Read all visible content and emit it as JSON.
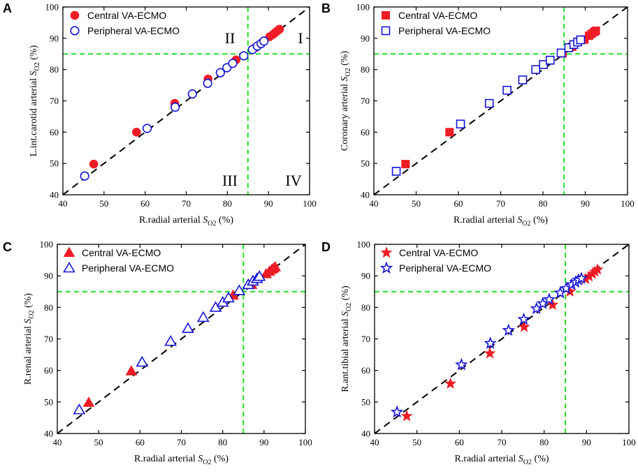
{
  "figure": {
    "xlabel_prefix": "R.radial arterial ",
    "ylabel_unit_suffix": " (%)",
    "series_names": [
      "Central VA-ECMO",
      "Peripheral VA-ECMO"
    ],
    "colors": {
      "central": "#ee1c25",
      "peripheral": "#1414d6",
      "threshold": "#22dd22",
      "identity": "#000000"
    }
  },
  "chart_data": [
    {
      "panel": "A",
      "type": "scatter",
      "marker": "circle",
      "title": "",
      "ylabel_prefix": "L.int.carotid arterial ",
      "xlabel": "R.radial arterial SO2 (%)",
      "ylabel": "L.int.carotid arterial SO2 (%)",
      "xlim": [
        40,
        100
      ],
      "ylim": [
        40,
        100
      ],
      "xticks": [
        40,
        50,
        60,
        70,
        80,
        90,
        100
      ],
      "yticks": [
        40,
        50,
        60,
        70,
        80,
        90,
        100
      ],
      "threshold": 85,
      "quadrant_labels": [
        "I",
        "II",
        "III",
        "IV"
      ],
      "legend": "top-left",
      "series": [
        {
          "name": "Central VA-ECMO",
          "x": [
            47.5,
            57.9,
            67.2,
            75.3,
            82.1,
            86.8,
            90.3,
            91.2,
            91.8,
            92.3,
            92.7
          ],
          "y": [
            49.8,
            60.0,
            69.2,
            77.0,
            83.1,
            87.0,
            90.5,
            91.3,
            92.0,
            92.5,
            92.9
          ]
        },
        {
          "name": "Peripheral VA-ECMO",
          "x": [
            45.3,
            60.5,
            67.3,
            71.5,
            75.2,
            78.3,
            79.9,
            81.3,
            84.0,
            86.1,
            87.3,
            88.2,
            88.9
          ],
          "y": [
            46.0,
            61.2,
            68.0,
            72.2,
            75.6,
            79.0,
            80.6,
            82.0,
            84.4,
            86.4,
            87.5,
            88.3,
            89.1
          ]
        }
      ]
    },
    {
      "panel": "B",
      "type": "scatter",
      "marker": "square",
      "title": "",
      "ylabel_prefix": "Coronary arterial ",
      "xlabel": "R.radial arterial SO2 (%)",
      "ylabel": "Coronary arterial SO2 (%)",
      "xlim": [
        40,
        100
      ],
      "ylim": [
        40,
        100
      ],
      "xticks": [
        40,
        50,
        60,
        70,
        80,
        90,
        100
      ],
      "yticks": [
        40,
        50,
        60,
        70,
        80,
        90,
        100
      ],
      "threshold": 85,
      "quadrant_labels": [],
      "legend": "top-left",
      "series": [
        {
          "name": "Central VA-ECMO",
          "x": [
            47.5,
            57.9,
            84.6,
            86.9,
            89.8,
            90.9,
            91.5,
            92.1,
            92.5
          ],
          "y": [
            49.8,
            60.0,
            85.2,
            87.3,
            89.6,
            90.8,
            91.4,
            92.0,
            92.4
          ]
        },
        {
          "name": "Peripheral VA-ECMO",
          "x": [
            45.3,
            60.5,
            67.3,
            71.5,
            75.2,
            78.3,
            80.1,
            81.7,
            84.3,
            86.1,
            87.3,
            88.2,
            88.9
          ],
          "y": [
            47.5,
            62.6,
            69.2,
            73.4,
            76.7,
            80.0,
            81.6,
            83.0,
            85.3,
            87.0,
            88.0,
            88.8,
            89.5
          ]
        }
      ]
    },
    {
      "panel": "C",
      "type": "scatter",
      "marker": "triangle",
      "title": "",
      "ylabel_prefix": "R.renal arterial ",
      "xlabel": "R.radial arterial SO2 (%)",
      "ylabel": "R.renal arterial SO2 (%)",
      "xlim": [
        40,
        100
      ],
      "ylim": [
        40,
        100
      ],
      "xticks": [
        40,
        50,
        60,
        70,
        80,
        90,
        100
      ],
      "yticks": [
        40,
        50,
        60,
        70,
        80,
        90,
        100
      ],
      "threshold": 85,
      "quadrant_labels": [],
      "legend": "top-left",
      "series": [
        {
          "name": "Central VA-ECMO",
          "x": [
            47.6,
            57.9,
            82.5,
            87.0,
            90.5,
            91.3,
            91.9,
            92.3,
            92.7
          ],
          "y": [
            49.8,
            59.8,
            83.8,
            87.2,
            90.6,
            91.4,
            92.0,
            92.4,
            92.8
          ]
        },
        {
          "name": "Peripheral VA-ECMO",
          "x": [
            45.3,
            60.5,
            67.4,
            71.6,
            75.3,
            78.3,
            80.0,
            81.4,
            84.0,
            86.2,
            87.3,
            88.3,
            88.9
          ],
          "y": [
            47.5,
            62.6,
            69.2,
            73.3,
            76.8,
            80.0,
            81.6,
            83.0,
            85.3,
            87.2,
            88.3,
            89.1,
            89.8
          ]
        }
      ]
    },
    {
      "panel": "D",
      "type": "scatter",
      "marker": "star",
      "title": "",
      "ylabel_prefix": "R.ant.tibial arterial ",
      "xlabel": "R.radial arterial SO2 (%)",
      "ylabel": "R.ant.tibial arterial SO2 (%)",
      "xlim": [
        40,
        100
      ],
      "ylim": [
        40,
        100
      ],
      "xticks": [
        40,
        50,
        60,
        70,
        80,
        90,
        100
      ],
      "yticks": [
        40,
        50,
        60,
        70,
        80,
        90,
        100
      ],
      "threshold": 85,
      "quadrant_labels": [],
      "legend": "top-left",
      "series": [
        {
          "name": "Central VA-ECMO",
          "x": [
            47.6,
            57.9,
            67.2,
            75.3,
            82.0,
            86.1,
            89.8,
            90.6,
            91.4,
            92.0,
            92.6
          ],
          "y": [
            45.5,
            55.8,
            65.4,
            73.8,
            80.8,
            85.0,
            89.0,
            89.8,
            90.6,
            91.3,
            92.0
          ]
        },
        {
          "name": "Peripheral VA-ECMO",
          "x": [
            45.3,
            60.5,
            67.3,
            71.6,
            75.2,
            78.2,
            79.7,
            81.2,
            83.8,
            85.2,
            86.5,
            87.4,
            88.1,
            88.8
          ],
          "y": [
            46.8,
            61.8,
            68.6,
            72.7,
            76.2,
            79.6,
            81.2,
            82.5,
            84.6,
            86.0,
            87.2,
            88.0,
            88.7,
            89.2
          ]
        }
      ]
    }
  ]
}
